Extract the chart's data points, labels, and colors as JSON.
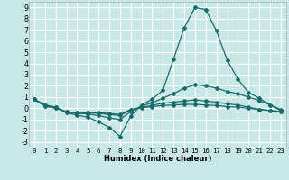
{
  "xlabel": "Humidex (Indice chaleur)",
  "ylabel": "",
  "xlim": [
    -0.5,
    23.5
  ],
  "ylim": [
    -3.5,
    9.5
  ],
  "xticks": [
    0,
    1,
    2,
    3,
    4,
    5,
    6,
    7,
    8,
    9,
    10,
    11,
    12,
    13,
    14,
    15,
    16,
    17,
    18,
    19,
    20,
    21,
    22,
    23
  ],
  "yticks": [
    -3,
    -2,
    -1,
    0,
    1,
    2,
    3,
    4,
    5,
    6,
    7,
    8,
    9
  ],
  "bg_color": "#c8e8e8",
  "line_color": "#1a6b6b",
  "grid_color": "#ffffff",
  "lines": [
    {
      "x": [
        0,
        1,
        2,
        3,
        4,
        5,
        6,
        7,
        8,
        9,
        10,
        11,
        12,
        13,
        14,
        15,
        16,
        17,
        18,
        19,
        20,
        21,
        22,
        23
      ],
      "y": [
        0.8,
        0.3,
        0.1,
        -0.4,
        -0.6,
        -0.8,
        -1.2,
        -1.7,
        -2.5,
        -0.7,
        0.3,
        0.8,
        1.6,
        4.4,
        7.2,
        9.0,
        8.8,
        6.9,
        4.3,
        2.6,
        1.4,
        0.9,
        0.3,
        -0.2
      ]
    },
    {
      "x": [
        0,
        1,
        2,
        3,
        4,
        5,
        6,
        7,
        8,
        9,
        10,
        11,
        12,
        13,
        14,
        15,
        16,
        17,
        18,
        19,
        20,
        21,
        22,
        23
      ],
      "y": [
        0.8,
        0.3,
        0.1,
        -0.35,
        -0.45,
        -0.5,
        -0.65,
        -0.85,
        -1.0,
        -0.3,
        0.2,
        0.5,
        0.9,
        1.3,
        1.8,
        2.1,
        2.0,
        1.8,
        1.5,
        1.3,
        1.0,
        0.7,
        0.3,
        -0.1
      ]
    },
    {
      "x": [
        0,
        1,
        2,
        3,
        4,
        5,
        6,
        7,
        8,
        9,
        10,
        11,
        12,
        13,
        14,
        15,
        16,
        17,
        18,
        19,
        20,
        21,
        22,
        23
      ],
      "y": [
        0.8,
        0.2,
        0.05,
        -0.3,
        -0.4,
        -0.4,
        -0.45,
        -0.55,
        -0.65,
        -0.15,
        0.1,
        0.25,
        0.45,
        0.55,
        0.65,
        0.75,
        0.65,
        0.55,
        0.4,
        0.3,
        0.1,
        -0.1,
        -0.2,
        -0.3
      ]
    },
    {
      "x": [
        0,
        1,
        2,
        3,
        4,
        5,
        6,
        7,
        8,
        9,
        10,
        11,
        12,
        13,
        14,
        15,
        16,
        17,
        18,
        19,
        20,
        21,
        22,
        23
      ],
      "y": [
        0.8,
        0.2,
        0.0,
        -0.3,
        -0.4,
        -0.4,
        -0.4,
        -0.45,
        -0.55,
        -0.1,
        0.05,
        0.15,
        0.25,
        0.3,
        0.35,
        0.35,
        0.3,
        0.25,
        0.15,
        0.1,
        0.0,
        -0.1,
        -0.2,
        -0.3
      ]
    }
  ],
  "marker": "D",
  "markersize": 2.0,
  "linewidth": 0.9,
  "xlabel_fontsize": 6.0,
  "tick_fontsize_x": 5.2,
  "tick_fontsize_y": 5.8
}
